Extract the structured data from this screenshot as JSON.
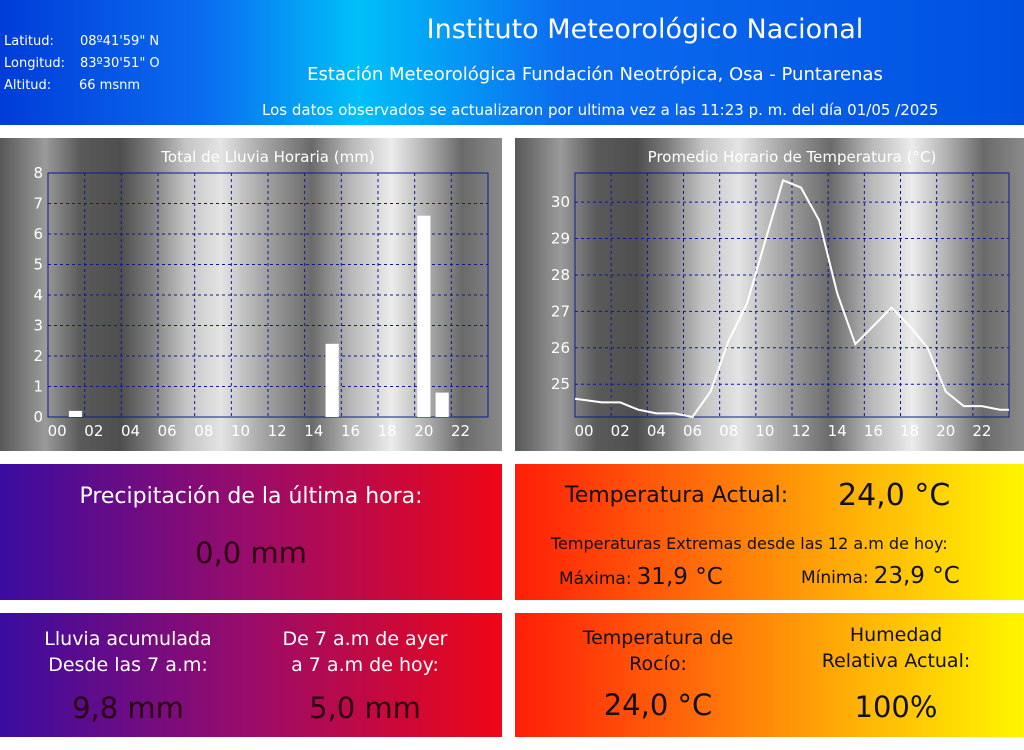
{
  "header": {
    "lat_label": "Latitud:",
    "lat_value": "08º41'59\" N",
    "lon_label": "Longitud:",
    "lon_value": "83º30'51\" O",
    "alt_label": "Altitud:",
    "alt_value": "66 msnm",
    "title": "Instituto Meteorológico Nacional",
    "subtitle": "Estación Meteorológica Fundación Neotrópica, Osa - Puntarenas",
    "updated_text": "Los datos observados se actualizaron por ultima vez a las",
    "updated_time": "11:23 p. m.",
    "updated_day_text": "del día",
    "updated_date": "01/05 /2025"
  },
  "chart_data": [
    {
      "type": "bar",
      "title": "Total de Lluvia Horaria (mm)",
      "x": [
        0,
        1,
        2,
        3,
        4,
        5,
        6,
        7,
        8,
        9,
        10,
        11,
        12,
        13,
        14,
        15,
        16,
        17,
        18,
        19,
        20,
        21,
        22,
        23
      ],
      "xtick_labels": [
        "00",
        "02",
        "04",
        "06",
        "08",
        "10",
        "12",
        "14",
        "16",
        "18",
        "20",
        "22"
      ],
      "values": [
        0,
        0.2,
        0,
        0,
        0,
        0,
        0,
        0,
        0,
        0,
        0,
        0,
        0,
        0,
        0,
        2.4,
        0,
        0,
        0,
        0,
        6.6,
        0.8,
        0,
        0
      ],
      "ylim": [
        0,
        8
      ],
      "yticks": [
        "0",
        "1",
        "2",
        "3",
        "4",
        "5",
        "6",
        "7",
        "8"
      ],
      "grid": true
    },
    {
      "type": "line",
      "title": "Promedio Horario de Temperatura (°C)",
      "x": [
        0,
        1,
        2,
        3,
        4,
        5,
        6,
        7,
        8,
        9,
        10,
        11,
        12,
        13,
        14,
        15,
        16,
        17,
        18,
        19,
        20,
        21,
        22,
        23
      ],
      "xtick_labels": [
        "00",
        "02",
        "04",
        "06",
        "08",
        "10",
        "12",
        "14",
        "16",
        "18",
        "20",
        "22"
      ],
      "values": [
        24.6,
        24.5,
        24.5,
        24.3,
        24.2,
        24.2,
        24.1,
        24.8,
        26.2,
        27.2,
        28.9,
        30.6,
        30.4,
        29.5,
        27.5,
        26.1,
        26.6,
        27.1,
        26.6,
        26.0,
        24.8,
        24.4,
        24.4,
        24.3
      ],
      "ylim": [
        24.1,
        30.8
      ],
      "yticks": [
        "25",
        "26",
        "27",
        "28",
        "29",
        "30"
      ],
      "grid": true
    }
  ],
  "precip": {
    "label": "Precipitación de la última hora:",
    "value": "0,0 mm"
  },
  "rain_acc": {
    "label_line1": "Lluvia acumulada",
    "label_line2": "Desde las 7 a.m:",
    "value": "9,8 mm",
    "yesterday_line1": "De 7 a.m de ayer",
    "yesterday_line2": "a 7 a.m de hoy:",
    "yesterday_value": "5,0 mm"
  },
  "temp": {
    "current_label": "Temperatura Actual:",
    "current_value": "24,0 °C",
    "extremes_label": "Temperaturas Extremas desde las 12 a.m de hoy:",
    "max_label": "Máxima:",
    "max_value": "31,9 °C",
    "min_label": "Mínima:",
    "min_value": "23,9 °C"
  },
  "dew": {
    "label_line1": "Temperatura de",
    "label_line2": "Rocío:",
    "value": "24,0 °C"
  },
  "humidity": {
    "label_line1": "Humedad",
    "label_line2": "Relativa Actual:",
    "value": "100%"
  },
  "colors": {
    "grid": "#0a1a9a",
    "bars": "#ffffff",
    "line": "#ffffff"
  }
}
